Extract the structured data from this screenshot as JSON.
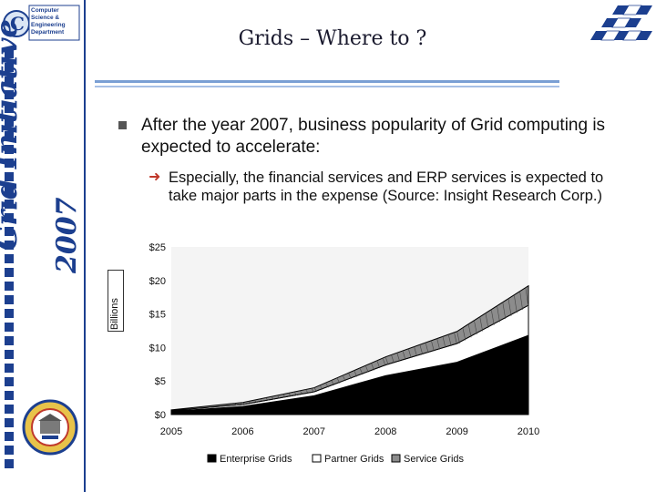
{
  "header": {
    "title": "Grids – Where to ?",
    "dept_logo_text": "Computer Science & Engineering Department",
    "brand_line1": "Grid Initiative",
    "brand_line2": "2007"
  },
  "bullets": [
    {
      "text": "After the year 2007, business popularity of Grid computing is expected to accelerate:",
      "sub": "Especially, the financial services and ERP services is expected to take major parts in the expense (Source: Insight Research Corp.)"
    }
  ],
  "colors": {
    "brand_blue": "#1c3f8f",
    "enterprise": "#000000",
    "partner": "#ffffff",
    "service": "#8c8c8c"
  },
  "icons": {
    "bullet_square": "square-bullet-icon",
    "sub_bullet": "arrow-right-icon"
  },
  "chart_data": {
    "type": "area",
    "stacked": true,
    "x": [
      "2005",
      "2006",
      "2007",
      "2008",
      "2009",
      "2010"
    ],
    "ylabel": "Billions",
    "ylim": [
      0,
      25
    ],
    "yticks": [
      "$0",
      "$5",
      "$10",
      "$15",
      "$20",
      "$25"
    ],
    "ytick_values": [
      0,
      5,
      10,
      15,
      20,
      25
    ],
    "legend_position": "bottom",
    "series": [
      {
        "name": "Enterprise Grids",
        "values": [
          0.5,
          1.2,
          2.8,
          5.8,
          7.8,
          11.8
        ]
      },
      {
        "name": "Partner Grids",
        "values": [
          0.1,
          0.3,
          0.6,
          1.6,
          2.8,
          4.5
        ]
      },
      {
        "name": "Service Grids",
        "values": [
          0.1,
          0.3,
          0.6,
          1.2,
          1.8,
          2.9
        ]
      }
    ]
  }
}
